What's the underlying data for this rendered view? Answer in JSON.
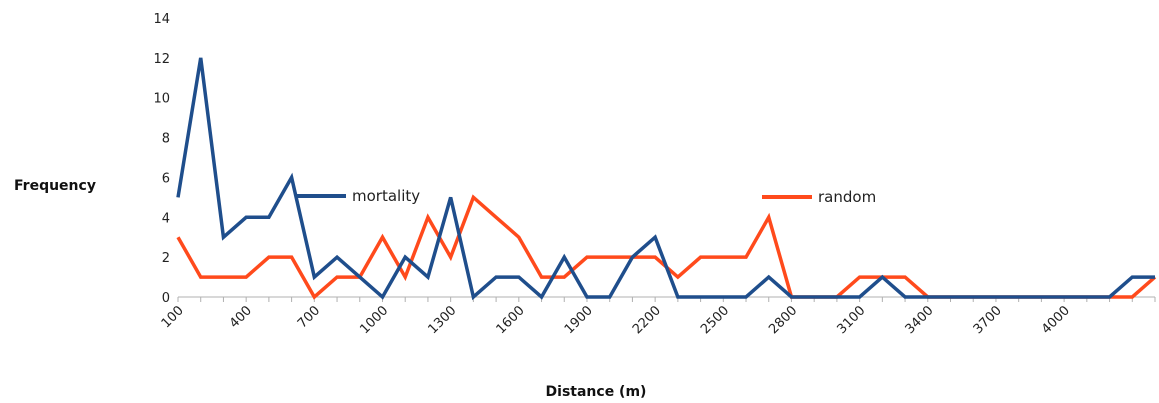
{
  "chart_data": {
    "type": "line",
    "title": "",
    "xlabel": "Distance (m)",
    "ylabel": "Frequency",
    "x": [
      100,
      200,
      300,
      400,
      500,
      600,
      700,
      800,
      900,
      1000,
      1100,
      1200,
      1300,
      1400,
      1500,
      1600,
      1700,
      1800,
      1900,
      2000,
      2100,
      2200,
      2300,
      2400,
      2500,
      2600,
      2700,
      2800,
      2900,
      3000,
      3100,
      3200,
      3300,
      3400,
      3500,
      3600,
      3700,
      3800,
      3900,
      4000,
      4100,
      4200,
      4300,
      4400
    ],
    "x_tick_labels": [
      "100",
      "400",
      "700",
      "1000",
      "1300",
      "1600",
      "1900",
      "2200",
      "2500",
      "2800",
      "3100",
      "3400",
      "3700",
      "4000"
    ],
    "ylim": [
      0,
      14
    ],
    "y_ticks": [
      "0",
      "2",
      "4",
      "6",
      "8",
      "10",
      "12",
      "14"
    ],
    "grid": false,
    "legend_placement": "inline",
    "series": [
      {
        "name": "mortality",
        "color": "#1f4e8c",
        "values": [
          5,
          12,
          3,
          4,
          4,
          6,
          1,
          2,
          1,
          0,
          2,
          1,
          5,
          0,
          1,
          1,
          0,
          2,
          0,
          0,
          2,
          3,
          0,
          0,
          0,
          0,
          1,
          0,
          0,
          0,
          0,
          1,
          0,
          0,
          0,
          0,
          0,
          0,
          0,
          0,
          0,
          0,
          1,
          1
        ]
      },
      {
        "name": "random",
        "color": "#ff4a1c",
        "values": [
          3,
          1,
          1,
          1,
          2,
          2,
          0,
          1,
          1,
          3,
          1,
          4,
          2,
          5,
          4,
          3,
          1,
          1,
          2,
          2,
          2,
          2,
          1,
          2,
          2,
          2,
          4,
          0,
          0,
          0,
          1,
          1,
          1,
          0,
          0,
          0,
          0,
          0,
          0,
          0,
          0,
          0,
          0,
          1
        ]
      }
    ]
  }
}
